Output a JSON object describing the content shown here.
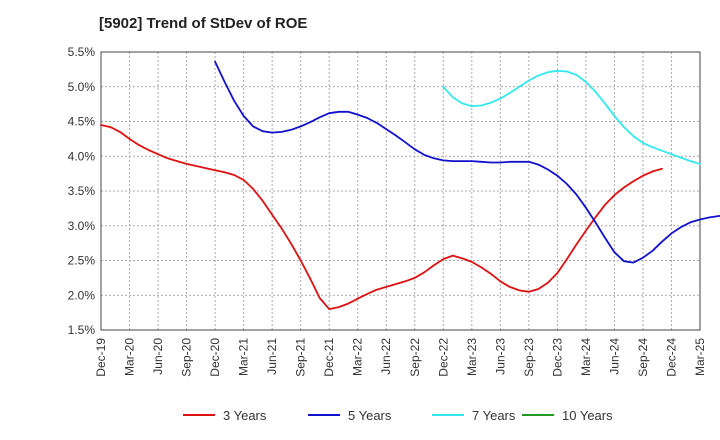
{
  "chart_data": {
    "type": "line",
    "title": "[5902]  Trend of StDev of ROE",
    "xlabel": "",
    "ylabel": "",
    "x_ticks": [
      "Dec-19",
      "Mar-20",
      "Jun-20",
      "Sep-20",
      "Dec-20",
      "Mar-21",
      "Jun-21",
      "Sep-21",
      "Dec-21",
      "Mar-22",
      "Jun-22",
      "Sep-22",
      "Dec-22",
      "Mar-23",
      "Jun-23",
      "Sep-23",
      "Dec-23",
      "Mar-24",
      "Jun-24",
      "Sep-24",
      "Dec-24",
      "Mar-25"
    ],
    "y_ticks": [
      "1.5%",
      "2.0%",
      "2.5%",
      "3.0%",
      "3.5%",
      "4.0%",
      "4.5%",
      "5.0%",
      "5.5%"
    ],
    "y_tick_values": [
      1.5,
      2.0,
      2.5,
      3.0,
      3.5,
      4.0,
      4.5,
      5.0,
      5.5
    ],
    "ylim": [
      1.5,
      5.5
    ],
    "grid": true,
    "legend_position": "bottom",
    "series": [
      {
        "name": "3 Years",
        "color": "#dd1111",
        "points": [
          [
            "Dec-19",
            4.45
          ],
          [
            "Jan-20",
            4.42
          ],
          [
            "Feb-20",
            4.35
          ],
          [
            "Mar-20",
            4.25
          ],
          [
            "Apr-20",
            4.16
          ],
          [
            "May-20",
            4.09
          ],
          [
            "Jun-20",
            4.03
          ],
          [
            "Jul-20",
            3.97
          ],
          [
            "Aug-20",
            3.93
          ],
          [
            "Sep-20",
            3.89
          ],
          [
            "Oct-20",
            3.86
          ],
          [
            "Nov-20",
            3.83
          ],
          [
            "Dec-20",
            3.8
          ],
          [
            "Jan-21",
            3.77
          ],
          [
            "Feb-21",
            3.73
          ],
          [
            "Mar-21",
            3.66
          ],
          [
            "Apr-21",
            3.53
          ],
          [
            "May-21",
            3.36
          ],
          [
            "Jun-21",
            3.16
          ],
          [
            "Jul-21",
            2.96
          ],
          [
            "Aug-21",
            2.74
          ],
          [
            "Sep-21",
            2.5
          ],
          [
            "Oct-21",
            2.24
          ],
          [
            "Nov-21",
            1.96
          ],
          [
            "Dec-21",
            1.8
          ],
          [
            "Jan-22",
            1.83
          ],
          [
            "Feb-22",
            1.88
          ],
          [
            "Mar-22",
            1.95
          ],
          [
            "Apr-22",
            2.02
          ],
          [
            "May-22",
            2.08
          ],
          [
            "Jun-22",
            2.12
          ],
          [
            "Jul-22",
            2.16
          ],
          [
            "Aug-22",
            2.2
          ],
          [
            "Sep-22",
            2.25
          ],
          [
            "Oct-22",
            2.33
          ],
          [
            "Nov-22",
            2.43
          ],
          [
            "Dec-22",
            2.52
          ],
          [
            "Jan-23",
            2.57
          ],
          [
            "Feb-23",
            2.53
          ],
          [
            "Mar-23",
            2.48
          ],
          [
            "Apr-23",
            2.4
          ],
          [
            "May-23",
            2.31
          ],
          [
            "Jun-23",
            2.2
          ],
          [
            "Jul-23",
            2.12
          ],
          [
            "Aug-23",
            2.07
          ],
          [
            "Sep-23",
            2.05
          ],
          [
            "Oct-23",
            2.09
          ],
          [
            "Nov-23",
            2.18
          ],
          [
            "Dec-23",
            2.32
          ],
          [
            "Jan-24",
            2.52
          ],
          [
            "Feb-24",
            2.73
          ],
          [
            "Mar-24",
            2.93
          ],
          [
            "Apr-24",
            3.12
          ],
          [
            "May-24",
            3.3
          ],
          [
            "Jun-24",
            3.44
          ],
          [
            "Jul-24",
            3.55
          ],
          [
            "Aug-24",
            3.64
          ],
          [
            "Sep-24",
            3.72
          ],
          [
            "Oct-24",
            3.78
          ],
          [
            "Nov-24",
            3.82
          ]
        ]
      },
      {
        "name": "5 Years",
        "color": "#1111cc",
        "points": [
          [
            "Dec-20",
            5.36
          ],
          [
            "Jan-21",
            5.07
          ],
          [
            "Feb-21",
            4.8
          ],
          [
            "Mar-21",
            4.58
          ],
          [
            "Apr-21",
            4.43
          ],
          [
            "May-21",
            4.36
          ],
          [
            "Jun-21",
            4.34
          ],
          [
            "Jul-21",
            4.35
          ],
          [
            "Aug-21",
            4.38
          ],
          [
            "Sep-21",
            4.43
          ],
          [
            "Oct-21",
            4.49
          ],
          [
            "Nov-21",
            4.56
          ],
          [
            "Dec-21",
            4.62
          ],
          [
            "Jan-22",
            4.64
          ],
          [
            "Feb-22",
            4.64
          ],
          [
            "Mar-22",
            4.6
          ],
          [
            "Apr-22",
            4.55
          ],
          [
            "May-22",
            4.48
          ],
          [
            "Jun-22",
            4.39
          ],
          [
            "Jul-22",
            4.3
          ],
          [
            "Aug-22",
            4.2
          ],
          [
            "Sep-22",
            4.1
          ],
          [
            "Oct-22",
            4.02
          ],
          [
            "Nov-22",
            3.97
          ],
          [
            "Dec-22",
            3.94
          ],
          [
            "Jan-23",
            3.93
          ],
          [
            "Feb-23",
            3.93
          ],
          [
            "Mar-23",
            3.93
          ],
          [
            "Apr-23",
            3.92
          ],
          [
            "May-23",
            3.91
          ],
          [
            "Jun-23",
            3.91
          ],
          [
            "Jul-23",
            3.92
          ],
          [
            "Aug-23",
            3.92
          ],
          [
            "Sep-23",
            3.92
          ],
          [
            "Oct-23",
            3.88
          ],
          [
            "Nov-23",
            3.81
          ],
          [
            "Dec-23",
            3.72
          ],
          [
            "Jan-24",
            3.6
          ],
          [
            "Feb-24",
            3.45
          ],
          [
            "Mar-24",
            3.26
          ],
          [
            "Apr-24",
            3.05
          ],
          [
            "May-24",
            2.83
          ],
          [
            "Jun-24",
            2.62
          ],
          [
            "Jul-24",
            2.49
          ],
          [
            "Aug-24",
            2.47
          ],
          [
            "Sep-24",
            2.54
          ],
          [
            "Oct-24",
            2.64
          ],
          [
            "Nov-24",
            2.77
          ],
          [
            "Dec-24",
            2.89
          ],
          [
            "Jan-25",
            2.98
          ],
          [
            "Feb-25",
            3.05
          ],
          [
            "Mar-25",
            3.09
          ],
          [
            "Apr-25",
            3.12
          ],
          [
            "May-25",
            3.14
          ],
          [
            "Jun-25",
            3.15
          ]
        ]
      },
      {
        "name": "7 Years",
        "color": "#33e8f0",
        "points": [
          [
            "Dec-22",
            5.0
          ],
          [
            "Jan-23",
            4.85
          ],
          [
            "Feb-23",
            4.76
          ],
          [
            "Mar-23",
            4.72
          ],
          [
            "Apr-23",
            4.73
          ],
          [
            "May-23",
            4.77
          ],
          [
            "Jun-23",
            4.83
          ],
          [
            "Jul-23",
            4.91
          ],
          [
            "Aug-23",
            5.0
          ],
          [
            "Sep-23",
            5.09
          ],
          [
            "Oct-23",
            5.16
          ],
          [
            "Nov-23",
            5.21
          ],
          [
            "Dec-23",
            5.23
          ],
          [
            "Jan-24",
            5.22
          ],
          [
            "Feb-24",
            5.17
          ],
          [
            "Mar-24",
            5.07
          ],
          [
            "Apr-24",
            4.93
          ],
          [
            "May-24",
            4.76
          ],
          [
            "Jun-24",
            4.58
          ],
          [
            "Jul-24",
            4.42
          ],
          [
            "Aug-24",
            4.29
          ],
          [
            "Sep-24",
            4.19
          ],
          [
            "Oct-24",
            4.13
          ],
          [
            "Nov-24",
            4.08
          ],
          [
            "Dec-24",
            4.03
          ],
          [
            "Jan-25",
            3.98
          ],
          [
            "Feb-25",
            3.93
          ],
          [
            "Mar-25",
            3.89
          ]
        ]
      },
      {
        "name": "10 Years",
        "color": "#229922",
        "points": []
      }
    ]
  }
}
